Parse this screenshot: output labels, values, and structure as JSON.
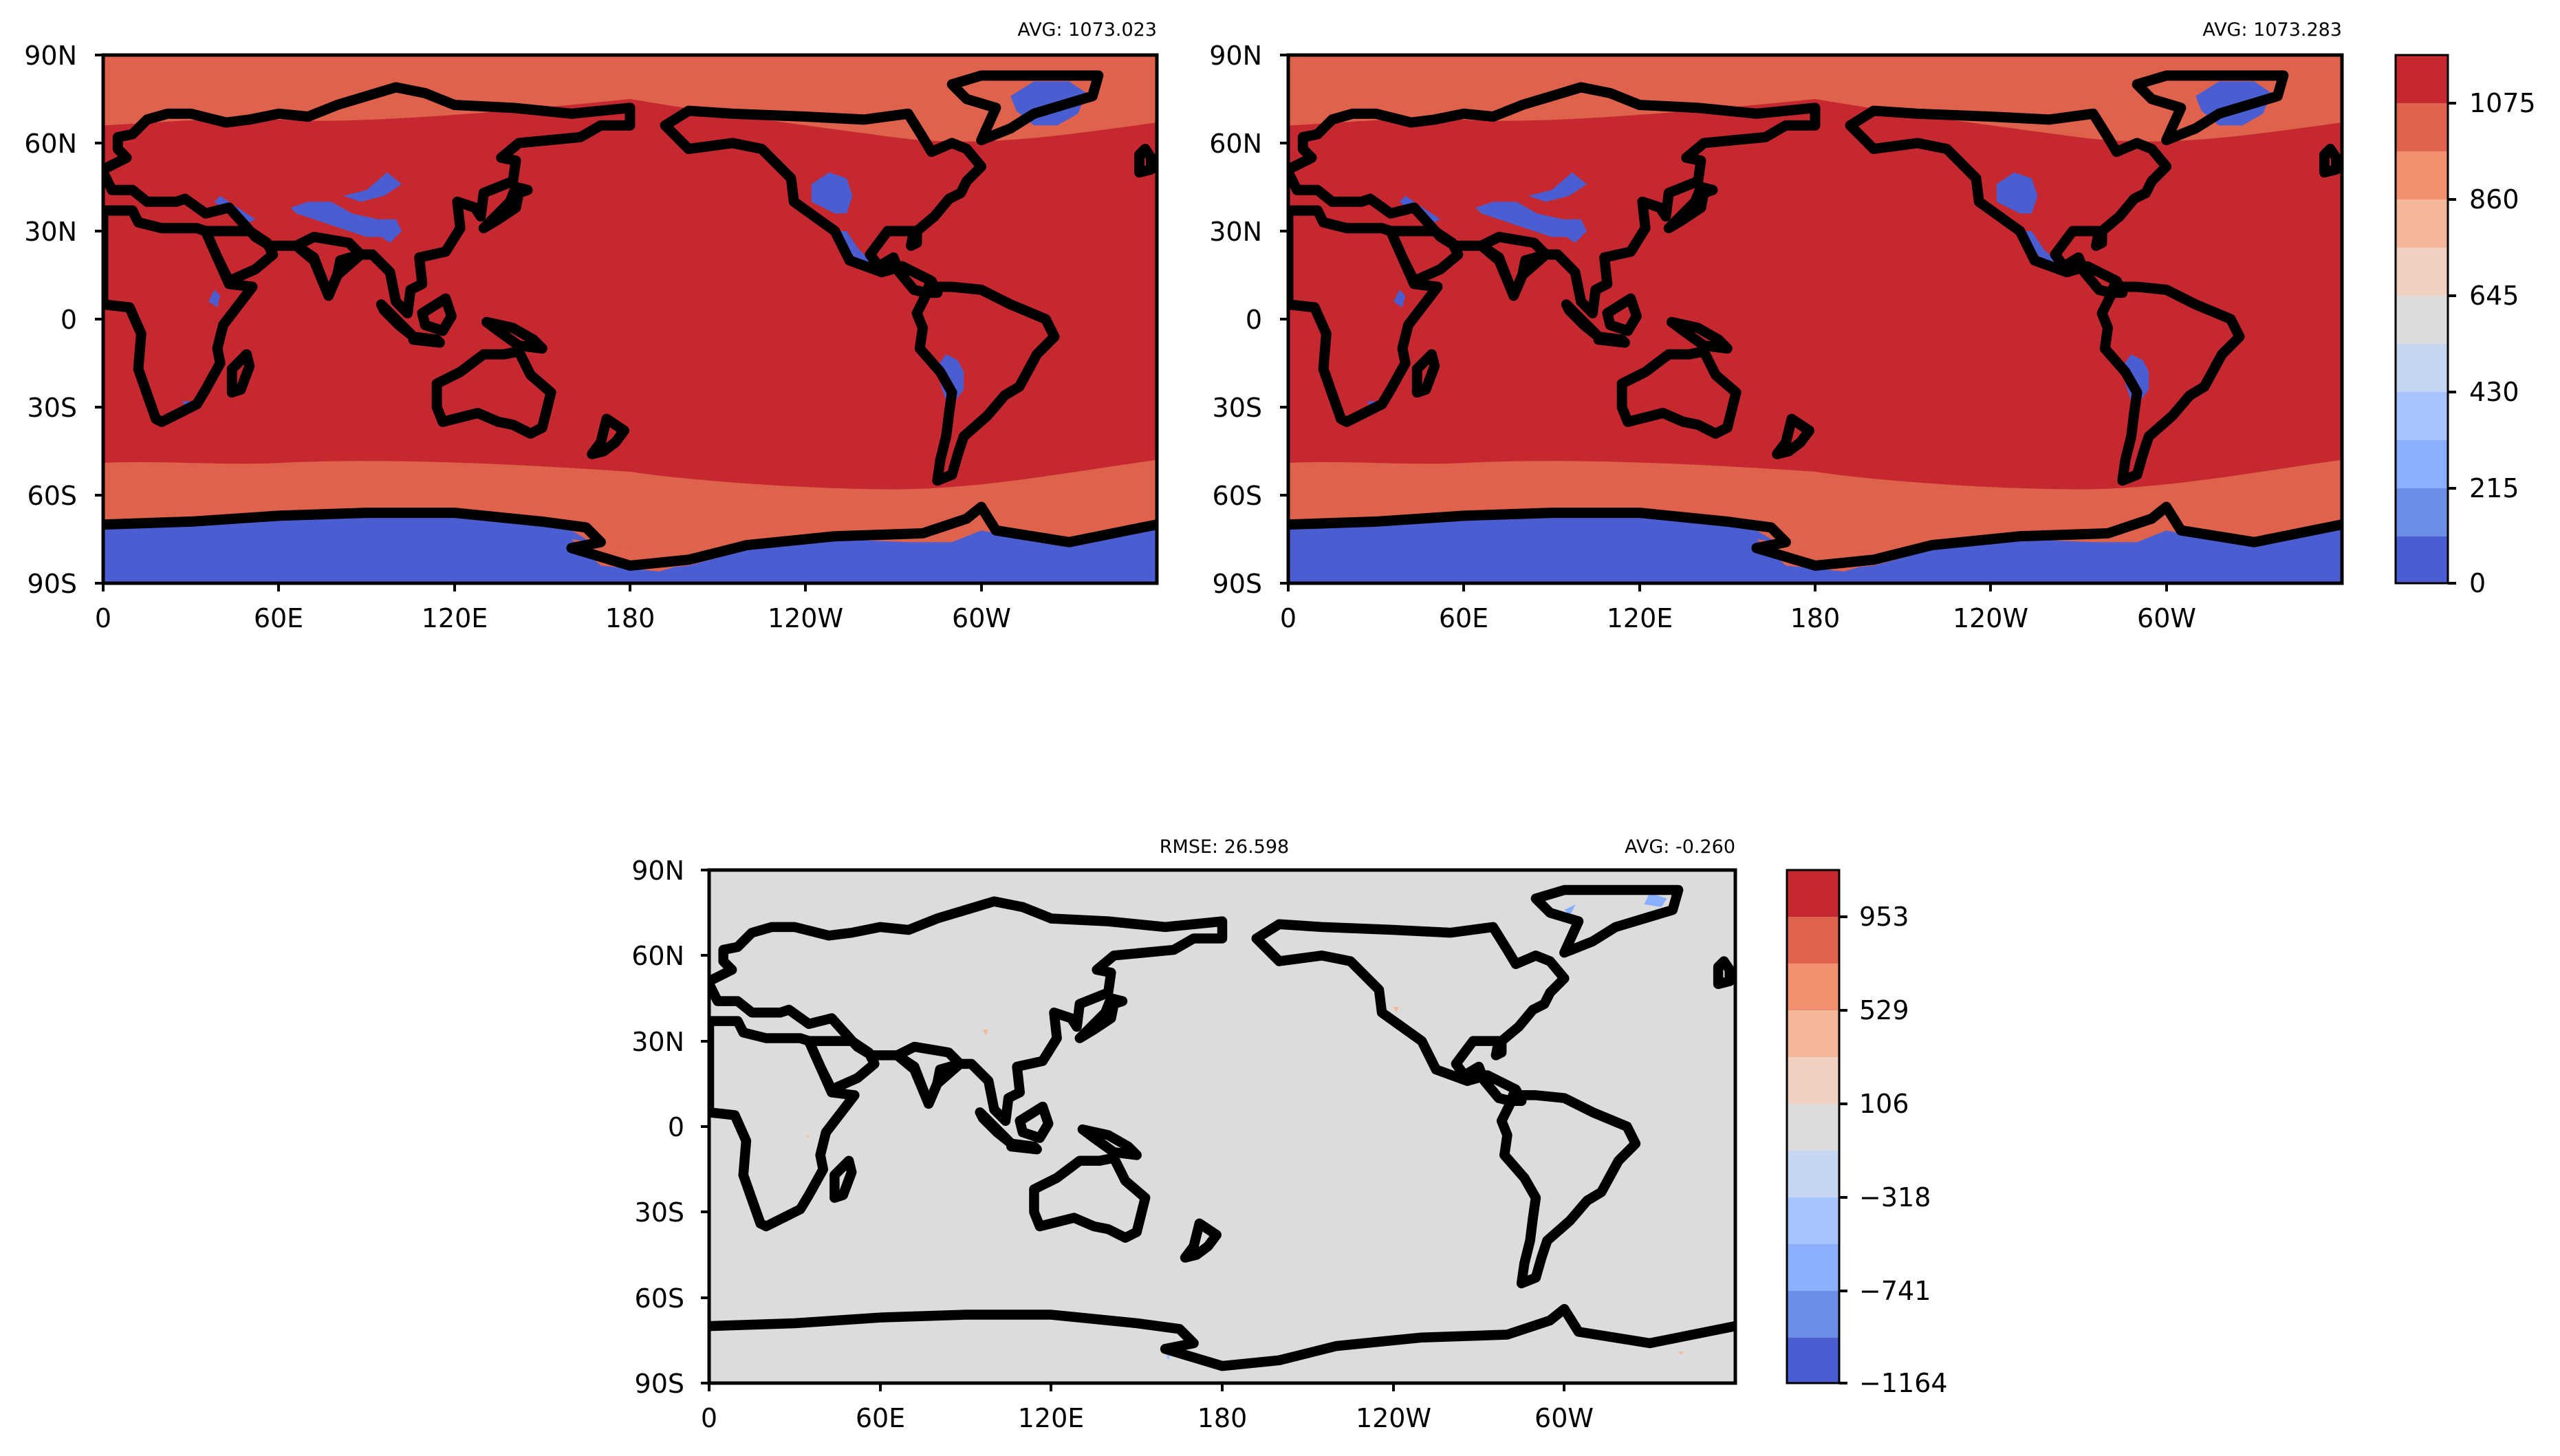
{
  "colors": {
    "warm5": "#c5292f",
    "warm4": "#df624d",
    "warm3": "#f2906f",
    "warm2": "#f5b79a",
    "warm1": "#f0d0c1",
    "neutral": "#dcdcdc",
    "cool1": "#c6d6f2",
    "cool2": "#a7c4fe",
    "cool3": "#8aaffc",
    "cool4": "#6b8ee8",
    "cool5": "#4a5ed1"
  },
  "panels": [
    {
      "id": "test",
      "avg_label": "AVG: 1073.023",
      "x_ticks": [
        "0",
        "60E",
        "120E",
        "180",
        "120W",
        "60W"
      ],
      "y_ticks": [
        "90N",
        "60N",
        "30N",
        "0",
        "30S",
        "60S",
        "90S"
      ]
    },
    {
      "id": "reference",
      "avg_label": "AVG: 1073.283",
      "x_ticks": [
        "0",
        "60E",
        "120E",
        "180",
        "120W",
        "60W"
      ],
      "y_ticks": [
        "90N",
        "60N",
        "30N",
        "0",
        "30S",
        "60S",
        "90S"
      ]
    },
    {
      "id": "difference",
      "rmse_label": "RMSE: 26.598",
      "avg_label": "AVG: -0.260",
      "x_ticks": [
        "0",
        "60E",
        "120E",
        "180",
        "120W",
        "60W"
      ],
      "y_ticks": [
        "90N",
        "60N",
        "30N",
        "0",
        "30S",
        "60S",
        "90S"
      ]
    }
  ],
  "colorbars": [
    {
      "id": "main",
      "tick_labels": [
        "1075",
        "860",
        "645",
        "430",
        "215",
        "0"
      ]
    },
    {
      "id": "diff",
      "tick_labels": [
        "953",
        "529",
        "106",
        "−318",
        "−741",
        "−1164"
      ]
    }
  ],
  "chart_data": {
    "type": "heatmap",
    "projection": "equirectangular, longitude 0 to 360 (centered on 180)",
    "maps": [
      {
        "id": "test",
        "avg": 1073.023,
        "levels": [
          0,
          215,
          430,
          645,
          860,
          1075
        ],
        "xlim": [
          0,
          360
        ],
        "ylim": [
          -90,
          90
        ]
      },
      {
        "id": "reference",
        "avg": 1073.283,
        "levels": [
          0,
          215,
          430,
          645,
          860,
          1075
        ],
        "xlim": [
          0,
          360
        ],
        "ylim": [
          -90,
          90
        ]
      },
      {
        "id": "difference",
        "rmse": 26.598,
        "avg": -0.26,
        "levels": [
          -1164,
          -741,
          -318,
          106,
          529,
          953
        ],
        "xlim": [
          0,
          360
        ],
        "ylim": [
          -90,
          90
        ]
      }
    ]
  }
}
